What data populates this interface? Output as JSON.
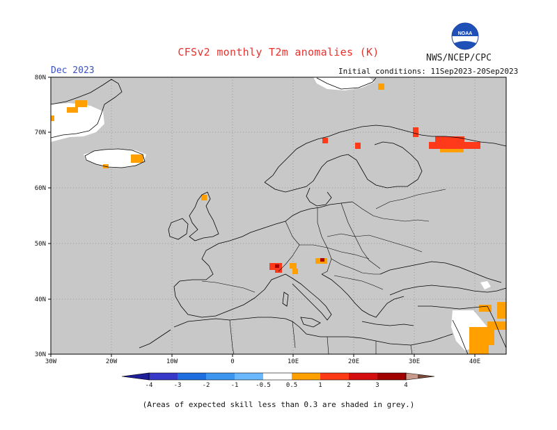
{
  "header": {
    "title": "CFSv2 monthly T2m anomalies (K)",
    "agency": "NWS/NCEP/CPC",
    "logo_text": "NOAA",
    "month": "Dec 2023",
    "initial_conditions": "Initial conditions: 11Sep2023-20Sep2023"
  },
  "map": {
    "lat_labels": [
      "80N",
      "70N",
      "60N",
      "50N",
      "40N",
      "30N"
    ],
    "lon_labels": [
      "30W",
      "20W",
      "10W",
      "0",
      "10E",
      "20E",
      "30E",
      "40E"
    ],
    "background_color": "#c8c8c8",
    "colors": {
      "white": "#ffffff",
      "orange": "#ff9f00",
      "red_orange": "#ff3a1a",
      "red": "#d80f0f",
      "dark_red": "#a80000"
    }
  },
  "colorbar": {
    "tick_labels": [
      "-4",
      "-3",
      "-2",
      "-1",
      "-0.5",
      "0.5",
      "1",
      "2",
      "3",
      "4"
    ],
    "colors": [
      "#1e1e98",
      "#3838c8",
      "#1e6ee0",
      "#3c96f0",
      "#6ab8ff",
      "#ffffff",
      "#ffa000",
      "#ff3a14",
      "#d40e0e",
      "#a00000",
      "#c89a8c",
      "#7a4a3a"
    ]
  },
  "footnote": "(Areas of expected skill less than 0.3 are shaded in grey.)"
}
